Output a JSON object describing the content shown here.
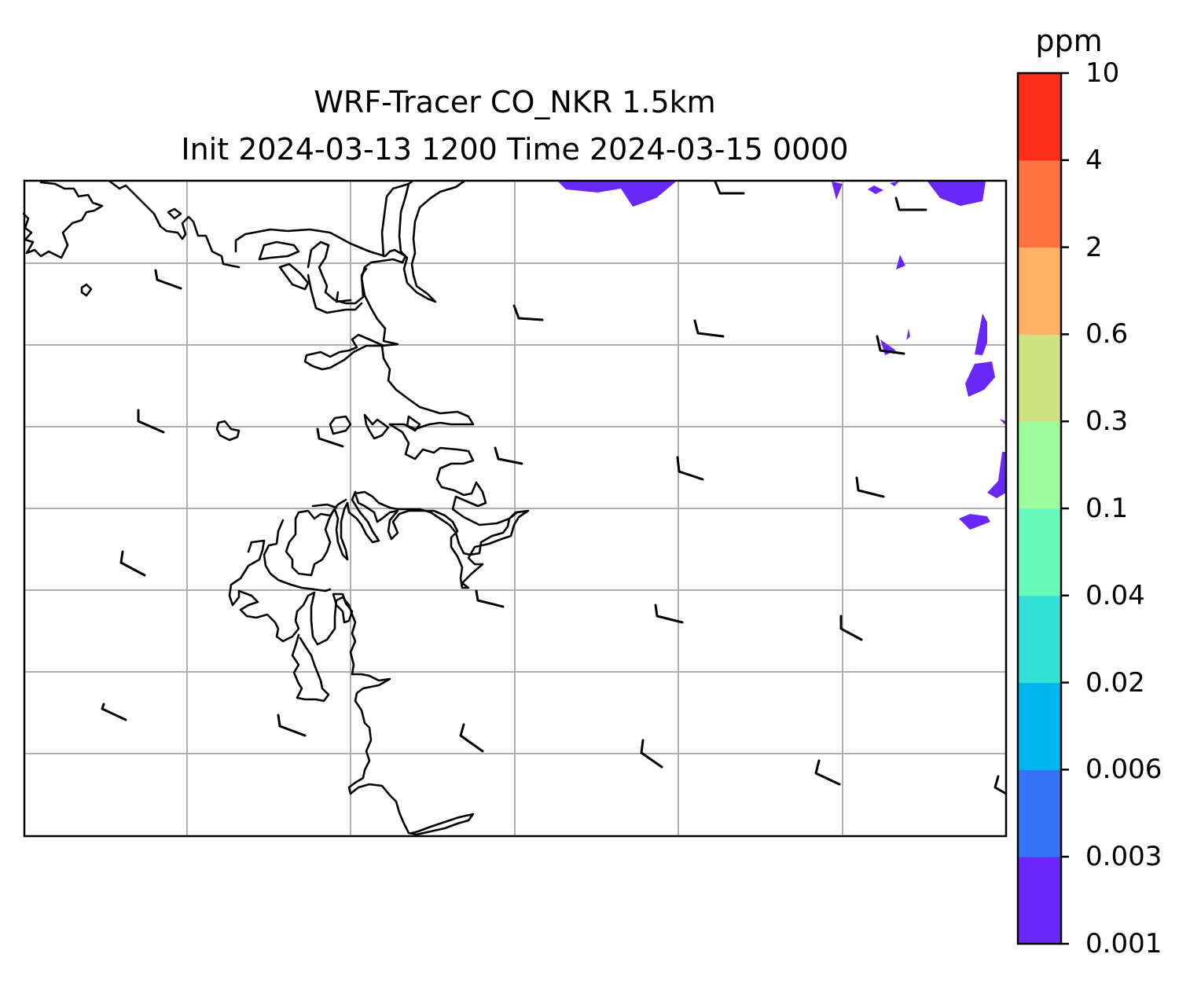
{
  "title": {
    "line1": "WRF-Tracer CO_NKR 1.5km",
    "line2": "Init 2024-03-13 1200 Time 2024-03-15 0000"
  },
  "colorbar": {
    "unit": "ppm",
    "levels": [
      "0.001",
      "0.003",
      "0.006",
      "0.02",
      "0.04",
      "0.1",
      "0.3",
      "0.6",
      "2",
      "4",
      "10"
    ],
    "colors": [
      "#6a28f8",
      "#3574f5",
      "#01b6ec",
      "#33e0d5",
      "#69fbbb",
      "#9dfd9c",
      "#d0e184",
      "#fdb164",
      "#fd7340",
      "#fd2c1b"
    ]
  },
  "map": {
    "frame_color": "#000000",
    "gridline_color": "#b0b0b0",
    "coastline_color": "#000000",
    "tracer_fill_color": "#6a28f8",
    "wind_barb_color": "#000000"
  }
}
